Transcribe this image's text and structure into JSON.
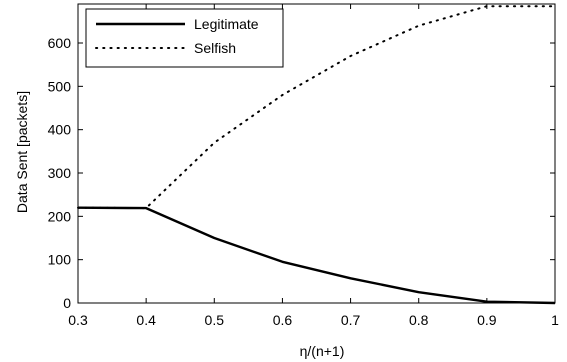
{
  "chart_data": {
    "type": "line",
    "xlabel": "η/(n+1)",
    "ylabel": "Data Sent [packets]",
    "xlim": [
      0.3,
      1.0
    ],
    "ylim": [
      0,
      690
    ],
    "xticks": [
      0.3,
      0.4,
      0.5,
      0.6,
      0.7,
      0.8,
      0.9,
      1.0
    ],
    "xtick_labels": [
      "0.3",
      "0.4",
      "0.5",
      "0.6",
      "0.7",
      "0.8",
      "0.9",
      "1"
    ],
    "yticks": [
      0,
      100,
      200,
      300,
      400,
      500,
      600
    ],
    "ytick_labels": [
      "0",
      "100",
      "200",
      "300",
      "400",
      "500",
      "600"
    ],
    "grid": false,
    "legend_position": "top-left",
    "series": [
      {
        "name": "Legitimate",
        "style": "solid",
        "color": "#000000",
        "x": [
          0.3,
          0.4,
          0.5,
          0.6,
          0.7,
          0.8,
          0.9,
          1.0
        ],
        "y": [
          220,
          219,
          150,
          95,
          57,
          25,
          3,
          0
        ]
      },
      {
        "name": "Selfish",
        "style": "dotted",
        "color": "#000000",
        "x": [
          0.3,
          0.4,
          0.5,
          0.6,
          0.7,
          0.8,
          0.9,
          1.0
        ],
        "y": [
          220,
          219,
          370,
          480,
          570,
          640,
          685,
          685
        ]
      }
    ]
  }
}
